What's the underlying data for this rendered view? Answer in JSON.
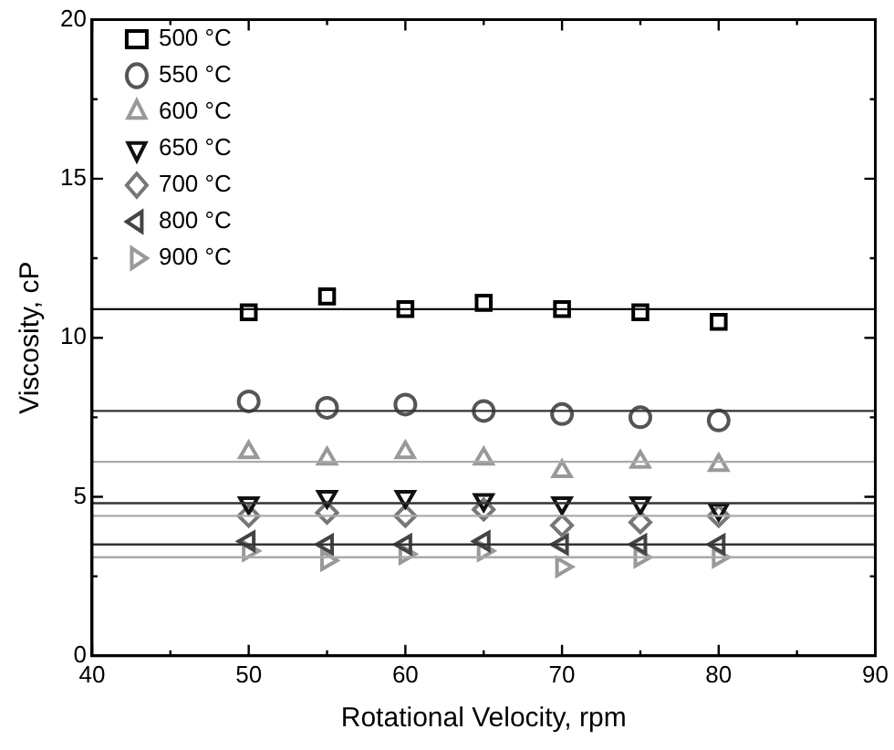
{
  "chart_data": {
    "type": "scatter",
    "xlabel": "Rotational Velocity, rpm",
    "ylabel": "Viscosity, cP",
    "xlim": [
      40,
      90
    ],
    "xticks": [
      40,
      {
        "value": 45,
        "label": null
      },
      50,
      {
        "value": 55,
        "label": null
      },
      60,
      {
        "value": 65,
        "label": null
      },
      70,
      {
        "value": 75,
        "label": null
      },
      80,
      {
        "value": 85,
        "label": null
      },
      90
    ],
    "ylim": [
      0,
      20
    ],
    "yticks": [
      0,
      {
        "value": 2.5,
        "label": null
      },
      5,
      {
        "value": 7.5,
        "label": null
      },
      10,
      {
        "value": 12.5,
        "label": null
      },
      15,
      {
        "value": 17.5,
        "label": null
      },
      20
    ],
    "x": [
      50,
      55,
      60,
      65,
      70,
      75,
      80
    ],
    "series": [
      {
        "name": "500 °C",
        "color": "#000000",
        "marker": "square",
        "values": [
          10.8,
          11.3,
          10.9,
          11.1,
          10.9,
          10.8,
          10.5
        ]
      },
      {
        "name": "550 °C",
        "color": "#555555",
        "marker": "circle",
        "values": [
          8.0,
          7.8,
          7.9,
          7.7,
          7.6,
          7.5,
          7.4
        ]
      },
      {
        "name": "600 °C",
        "color": "#999999",
        "marker": "triangle",
        "values": [
          6.4,
          6.2,
          6.4,
          6.2,
          5.8,
          6.1,
          6.0
        ]
      },
      {
        "name": "650 °C",
        "color": "#111111",
        "marker": "triangle-down",
        "values": [
          4.8,
          5.0,
          5.0,
          4.9,
          4.8,
          4.8,
          4.6
        ]
      },
      {
        "name": "700 °C",
        "color": "#777777",
        "marker": "diamond",
        "values": [
          4.4,
          4.5,
          4.4,
          4.6,
          4.1,
          4.2,
          4.4
        ]
      },
      {
        "name": "800 °C",
        "color": "#444444",
        "marker": "triangle-left",
        "values": [
          3.6,
          3.5,
          3.5,
          3.6,
          3.5,
          3.5,
          3.5
        ]
      },
      {
        "name": "900 °C",
        "color": "#999999",
        "marker": "triangle-right",
        "values": [
          3.3,
          3.0,
          3.2,
          3.3,
          2.8,
          3.1,
          3.1
        ]
      }
    ],
    "ref_lines": [
      {
        "axis": "y",
        "value": 10.9,
        "color": "#000000"
      },
      {
        "axis": "y",
        "value": 7.7,
        "color": "#333333"
      },
      {
        "axis": "y",
        "value": 6.1,
        "color": "#aaaaaa"
      },
      {
        "axis": "y",
        "value": 4.8,
        "color": "#333333"
      },
      {
        "axis": "y",
        "value": 4.4,
        "color": "#aaaaaa"
      },
      {
        "axis": "y",
        "value": 3.5,
        "color": "#333333"
      },
      {
        "axis": "y",
        "value": 3.1,
        "color": "#aaaaaa"
      }
    ],
    "legend": "top left",
    "grid": false
  }
}
